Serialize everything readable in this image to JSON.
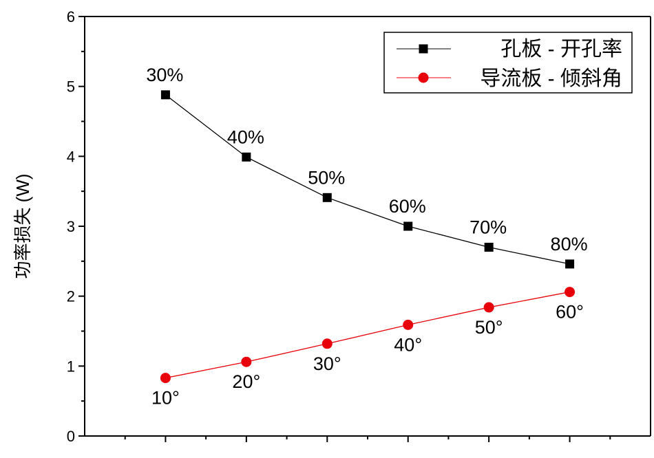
{
  "chart_data": {
    "type": "line",
    "x": [
      1,
      2,
      3,
      4,
      5,
      6
    ],
    "ylabel": "功率损失 (W)",
    "xlabel": "",
    "ylim": [
      0,
      6
    ],
    "y_ticks": [
      "0",
      "1",
      "2",
      "3",
      "4",
      "5",
      "6"
    ],
    "grid": false,
    "legend_position": "top-right",
    "series": [
      {
        "name": "孔板 - 开孔率",
        "color": "#000000",
        "marker": "square",
        "values": [
          4.88,
          3.99,
          3.41,
          3.0,
          2.7,
          2.46
        ],
        "point_labels": [
          "30%",
          "40%",
          "50%",
          "60%",
          "70%",
          "80%"
        ],
        "label_placement": "above"
      },
      {
        "name": "导流板 - 倾斜角",
        "color": "#e8000b",
        "marker": "circle",
        "values": [
          0.83,
          1.06,
          1.32,
          1.59,
          1.84,
          2.06
        ],
        "point_labels": [
          "10°",
          "20°",
          "30°",
          "40°",
          "50°",
          "60°"
        ],
        "label_placement": "below"
      }
    ]
  }
}
